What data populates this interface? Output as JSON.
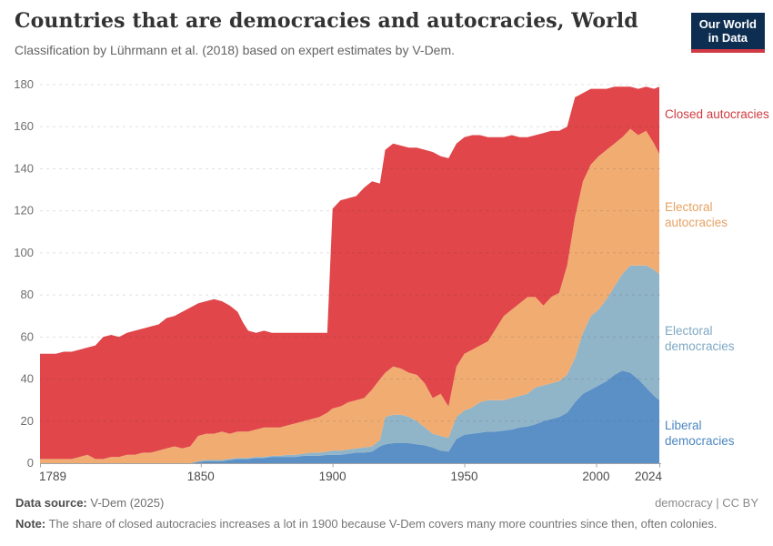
{
  "header": {
    "title": "Countries that are democracies and autocracies, World",
    "subtitle": "Classification by Lührmann et al. (2018) based on expert estimates by V-Dem.",
    "logo": {
      "line1": "Our World",
      "line2": "in Data",
      "bg": "#0d2e51",
      "stripe": "#cf3a45"
    }
  },
  "chart_data": {
    "type": "area",
    "stacked": true,
    "grid": "dashed-horizontal",
    "xlim": [
      1789,
      2024
    ],
    "ylim": [
      0,
      180
    ],
    "xticks": [
      1789,
      1850,
      1900,
      1950,
      2000,
      2024
    ],
    "yticks": [
      0,
      20,
      40,
      60,
      80,
      100,
      120,
      140,
      160,
      180
    ],
    "x": [
      1789,
      1792,
      1795,
      1798,
      1801,
      1804,
      1807,
      1810,
      1813,
      1816,
      1819,
      1822,
      1825,
      1828,
      1831,
      1834,
      1837,
      1840,
      1843,
      1846,
      1849,
      1852,
      1855,
      1858,
      1861,
      1864,
      1866,
      1868,
      1871,
      1874,
      1877,
      1880,
      1883,
      1886,
      1889,
      1892,
      1895,
      1898,
      1900,
      1903,
      1906,
      1909,
      1912,
      1915,
      1918,
      1920,
      1923,
      1926,
      1929,
      1932,
      1935,
      1938,
      1941,
      1944,
      1947,
      1950,
      1953,
      1956,
      1959,
      1962,
      1965,
      1968,
      1971,
      1974,
      1977,
      1980,
      1983,
      1986,
      1989,
      1992,
      1995,
      1998,
      2001,
      2004,
      2007,
      2010,
      2013,
      2016,
      2019,
      2022,
      2024
    ],
    "series": [
      {
        "id": "liberal-democracies",
        "name": "Liberal democracies",
        "color": "#5b90c7",
        "label_color": "#4c86c0",
        "values": [
          0,
          0,
          0,
          0,
          0,
          0,
          0,
          0,
          0,
          0,
          0,
          0,
          0,
          0,
          0,
          0,
          0,
          0,
          0,
          0,
          0.5,
          1,
          1,
          1,
          1.5,
          2,
          2,
          2,
          2.5,
          2.5,
          3,
          3,
          3,
          3,
          3.5,
          3.5,
          3.5,
          4,
          4,
          4,
          4.5,
          5,
          5,
          5.5,
          8,
          9,
          9.5,
          9.5,
          9.5,
          9,
          8.5,
          7.5,
          6,
          5.5,
          11.5,
          13.5,
          14,
          14.5,
          15,
          15,
          15.5,
          16,
          17,
          17.5,
          18.5,
          20,
          21,
          22,
          24,
          29,
          33,
          35,
          37,
          39,
          42,
          44,
          43,
          40,
          36,
          32,
          30
        ]
      },
      {
        "id": "electoral-democracies",
        "name": "Electoral democracies",
        "color": "#90b4c8",
        "label_color": "#7fa8c3",
        "values": [
          0,
          0,
          0,
          0,
          0,
          0,
          0,
          0,
          0,
          0,
          0,
          0,
          0,
          0,
          0,
          0,
          0,
          0,
          0,
          0,
          0.5,
          0.5,
          0.5,
          0.5,
          0.5,
          0.5,
          0.5,
          0.5,
          0.5,
          0.5,
          0.5,
          0.5,
          1,
          1,
          1,
          1.5,
          1.5,
          1.5,
          2,
          2,
          2,
          2,
          2.5,
          2.5,
          3,
          13,
          13.5,
          13.5,
          12.5,
          11,
          8.5,
          6.5,
          7,
          6.5,
          10.5,
          11.5,
          12.5,
          14.5,
          15,
          15,
          14.5,
          15,
          15,
          15.5,
          17.5,
          17,
          17,
          17,
          18,
          21,
          29,
          35,
          36,
          39,
          42,
          46,
          51,
          54,
          58,
          60,
          60
        ]
      },
      {
        "id": "electoral-autocracies",
        "name": "Electoral autocracies",
        "color": "#f0ac71",
        "label_color": "#e6a264",
        "values": [
          2,
          2,
          2,
          2,
          2,
          3,
          4,
          2,
          2,
          3,
          3,
          4,
          4,
          5,
          5,
          6,
          7,
          8,
          7,
          8,
          12,
          12.5,
          12.5,
          13.5,
          12,
          12.5,
          12.5,
          12.5,
          13,
          14,
          13.5,
          13.5,
          14,
          15,
          15.5,
          16,
          17,
          18.5,
          20,
          21,
          22.5,
          23,
          23.5,
          27,
          29,
          21,
          23,
          22,
          21,
          22,
          21,
          17,
          20,
          15,
          24,
          27,
          27.5,
          27,
          28,
          34,
          40,
          42,
          44,
          46,
          43,
          38,
          41,
          42,
          52,
          67,
          72,
          72,
          73,
          71,
          68,
          65,
          65,
          62,
          64,
          60,
          57
        ]
      },
      {
        "id": "closed-autocracies",
        "name": "Closed autocracies",
        "color": "#e0464a",
        "label_color": "#cf3a40",
        "values": [
          50,
          50,
          50,
          51,
          51,
          51,
          51,
          54,
          58,
          58,
          57,
          58,
          59,
          59,
          60,
          60,
          62,
          62,
          65,
          66,
          63,
          63,
          64,
          62,
          61,
          57,
          52,
          48,
          46,
          46,
          45,
          45,
          44,
          43,
          42,
          41,
          40,
          38,
          95,
          98,
          97,
          97,
          100,
          99,
          93,
          106,
          106,
          106,
          107,
          108,
          111,
          117,
          113,
          118,
          106,
          103,
          102,
          100,
          97,
          91,
          85,
          83,
          79,
          76,
          77,
          82,
          79,
          77,
          66,
          57,
          42,
          36,
          32,
          29,
          27,
          24,
          20,
          22,
          21,
          26,
          32
        ]
      }
    ]
  },
  "axis_style": {
    "tick_color": "#a5a5a5",
    "y_label_color": "#6d6d6d",
    "x_label_color": "#4c4c4c"
  },
  "footer": {
    "source_label": "Data source:",
    "source_value": " V-Dem (2025)",
    "right": "democracy | CC BY",
    "note_label": "Note:",
    "note_value": " The share of closed autocracies increases a lot in 1900 because V-Dem covers many more countries since then, often colonies."
  }
}
